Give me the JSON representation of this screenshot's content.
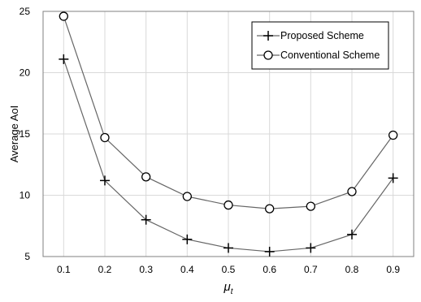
{
  "chart_data": {
    "type": "line",
    "title": "",
    "xlabel": "μ",
    "xlabel_sub": "t",
    "ylabel": "Average AoI",
    "x": [
      0.1,
      0.2,
      0.3,
      0.4,
      0.5,
      0.6,
      0.7,
      0.8,
      0.9
    ],
    "x_tick_labels": [
      "0.1",
      "0.2",
      "0.3",
      "0.4",
      "0.5",
      "0.6",
      "0.7",
      "0.8",
      "0.9"
    ],
    "y_ticks": [
      5,
      10,
      15,
      20,
      25
    ],
    "y_tick_labels": [
      "5",
      "10",
      "15",
      "20",
      "25"
    ],
    "xlim": [
      0.05,
      0.95
    ],
    "ylim": [
      5,
      25
    ],
    "grid": true,
    "legend_position": "top-right",
    "series": [
      {
        "name": "Proposed Scheme",
        "marker": "plus",
        "color": "#000000",
        "values": [
          21.1,
          11.2,
          8.0,
          6.4,
          5.7,
          5.4,
          5.7,
          6.8,
          11.4
        ]
      },
      {
        "name": "Conventional Scheme",
        "marker": "circle",
        "color": "#000000",
        "values": [
          24.6,
          14.7,
          11.5,
          9.9,
          9.2,
          8.9,
          9.1,
          10.3,
          14.9
        ]
      }
    ],
    "line_color": "#666666",
    "grid_color": "#d9d9d9"
  }
}
